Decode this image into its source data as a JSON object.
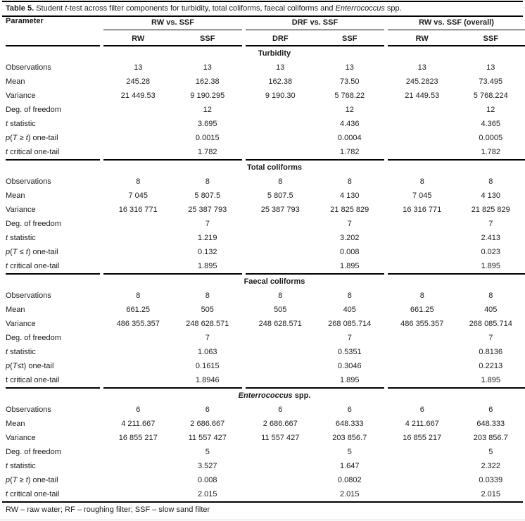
{
  "title": {
    "label": "Table 5.",
    "text": " Student *t*-test across filter components for  turbidity, total coliforms, faecal coliforms and *Enterrococcus* spp."
  },
  "header": {
    "parameter_label": "Parameter",
    "groups": [
      {
        "label": "RW vs. SSF",
        "columns": [
          "RW",
          "SSF"
        ]
      },
      {
        "label": "DRF vs. SSF",
        "columns": [
          "DRF",
          "SSF"
        ]
      },
      {
        "label": "RW vs. SSF (overall)",
        "columns": [
          "RW",
          "SSF"
        ]
      }
    ]
  },
  "sections": [
    {
      "name": "Turbidity",
      "rows": [
        {
          "label": "Observations",
          "values": [
            "13",
            "13",
            "13",
            "13",
            "13",
            "13"
          ]
        },
        {
          "label": "Mean",
          "values": [
            "245.28",
            "162.38",
            "162.38",
            "73.50",
            "245.2823",
            "73.495"
          ]
        },
        {
          "label": "Variance",
          "values": [
            "21 449.53",
            "9 190.295",
            "9 190.30",
            "5 768.22",
            "21 449.53",
            "5 768.224"
          ]
        },
        {
          "label": "Deg. of freedom",
          "values": [
            "",
            "12",
            "",
            "12",
            "",
            "12"
          ]
        },
        {
          "label": "*t* statistic",
          "values": [
            "",
            "3.695",
            "",
            "4.436",
            "",
            "4.365"
          ]
        },
        {
          "label": "*p*(*T* ≥ *t*) one-tail",
          "values": [
            "",
            "0.0015",
            "",
            "0.0004",
            "",
            "0.0005"
          ]
        },
        {
          "label": "*t* critical one-tail",
          "values": [
            "",
            "1.782",
            "",
            "1.782",
            "",
            "1.782"
          ]
        }
      ]
    },
    {
      "name": "Total coliforms",
      "rows": [
        {
          "label": "Observations",
          "values": [
            "8",
            "8",
            "8",
            "8",
            "8",
            "8"
          ]
        },
        {
          "label": "Mean",
          "values": [
            "7 045",
            "5 807.5",
            "5 807.5",
            "4 130",
            "7 045",
            "4 130"
          ]
        },
        {
          "label": "Variance",
          "values": [
            "16 316 771",
            "25 387 793",
            "25 387 793",
            "21 825 829",
            "16 316 771",
            "21 825 829"
          ]
        },
        {
          "label": "Deg. of freedom",
          "values": [
            "",
            "7",
            "",
            "7",
            "",
            "7"
          ]
        },
        {
          "label": "*t* statistic",
          "values": [
            "",
            "1.219",
            "",
            "3.202",
            "",
            "2.413"
          ]
        },
        {
          "label": "*p*(*T* ≤ *t*) one-tail",
          "values": [
            "",
            "0.132",
            "",
            "0.008",
            "",
            "0.023"
          ]
        },
        {
          "label": "*t* critical one-tail",
          "values": [
            "",
            "1.895",
            "",
            "1.895",
            "",
            "1.895"
          ]
        }
      ]
    },
    {
      "name": "Faecal coliforms",
      "rows": [
        {
          "label": "Observations",
          "values": [
            "8",
            "8",
            "8",
            "8",
            "8",
            "8"
          ]
        },
        {
          "label": "Mean",
          "values": [
            "661.25",
            "505",
            "505",
            "405",
            "661.25",
            "405"
          ]
        },
        {
          "label": "Variance",
          "values": [
            "486 355.357",
            "248 628.571",
            "248 628.571",
            "268 085.714",
            "486 355.357",
            "268 085.714"
          ]
        },
        {
          "label": "Deg. of freedom",
          "values": [
            "",
            "7",
            "",
            "7",
            "",
            "7"
          ]
        },
        {
          "label": "*t* statistic",
          "values": [
            "",
            "1.063",
            "",
            "0.5351",
            "",
            "0.8136"
          ]
        },
        {
          "label": "*p*(*T*≤t) one-tail",
          "values": [
            "",
            "0.1615",
            "",
            "0.3046",
            "",
            "0.2213"
          ]
        },
        {
          "label": "t critical one-tail",
          "values": [
            "",
            "1.8946",
            "",
            "1.895",
            "",
            "1.895"
          ]
        }
      ]
    },
    {
      "name": "*Enterrococcus* spp.",
      "rows": [
        {
          "label": "Observations",
          "values": [
            "6",
            "6",
            "6",
            "6",
            "6",
            "6"
          ]
        },
        {
          "label": "Mean",
          "values": [
            "4 211.667",
            "2 686.667",
            "2 686.667",
            "648.333",
            "4 211.667",
            "648.333"
          ]
        },
        {
          "label": "Variance",
          "values": [
            "16 855 217",
            "11 557 427",
            "11 557 427",
            "203 856.7",
            "16 855 217",
            "203 856.7"
          ]
        },
        {
          "label": "Deg. of freedom",
          "values": [
            "",
            "5",
            "",
            "5",
            "",
            "5"
          ]
        },
        {
          "label": "*t* statistic",
          "values": [
            "",
            "3.527",
            "",
            "1.647",
            "",
            "2.322"
          ]
        },
        {
          "label": "*p*(*T* ≥ *t*) one-tail",
          "values": [
            "",
            "0.008",
            "",
            "0.0802",
            "",
            "0.0339"
          ]
        },
        {
          "label": "*t* critical one-tail",
          "values": [
            "",
            "2.015",
            "",
            "2.015",
            "",
            "2.015"
          ]
        }
      ]
    }
  ],
  "footnote": "RW – raw water; RF – roughing filter; SSF – slow sand filter"
}
